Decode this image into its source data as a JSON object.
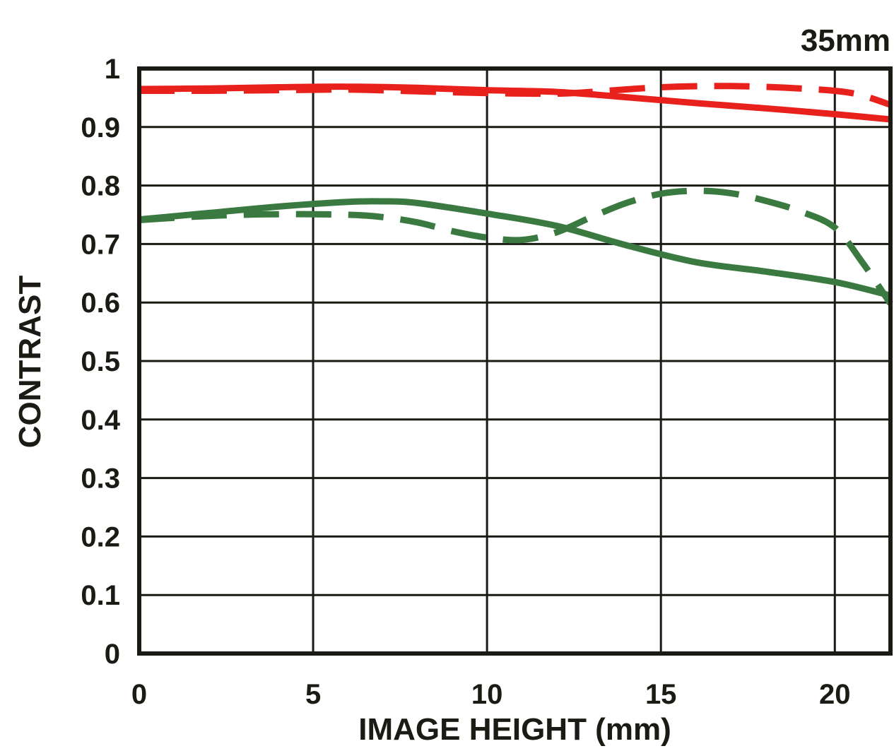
{
  "corner_label": "35mm",
  "axes": {
    "x_title": "IMAGE HEIGHT (mm)",
    "y_title": "CONTRAST",
    "x_tick_labels": [
      "0",
      "5",
      "10",
      "15",
      "20"
    ],
    "y_tick_labels": [
      "1",
      "0.9",
      "0.8",
      "0.7",
      "0.6",
      "0.5",
      "0.4",
      "0.3",
      "0.2",
      "0.1",
      "0"
    ]
  },
  "colors": {
    "axis": "#1c1a15",
    "red": "#e8211c",
    "green": "#3a7a40",
    "background": "#ffffff"
  },
  "chart_data": {
    "type": "line",
    "title": "35mm",
    "xlabel": "IMAGE HEIGHT (mm)",
    "ylabel": "CONTRAST",
    "xlim": [
      0,
      21.6
    ],
    "ylim": [
      0,
      1
    ],
    "x_tick_values": [
      0,
      5,
      10,
      15,
      20
    ],
    "y_tick_values": [
      1,
      0.9,
      0.8,
      0.7,
      0.6,
      0.5,
      0.4,
      0.3,
      0.2,
      0.1,
      0
    ],
    "grid": true,
    "legend": "none",
    "series": [
      {
        "name": "red-solid",
        "color": "#e8211c",
        "style": "solid",
        "points": [
          [
            0,
            0.965
          ],
          [
            2,
            0.966
          ],
          [
            4,
            0.968
          ],
          [
            6,
            0.969
          ],
          [
            8,
            0.967
          ],
          [
            10,
            0.963
          ],
          [
            12,
            0.96
          ],
          [
            14,
            0.951
          ],
          [
            16,
            0.941
          ],
          [
            18,
            0.932
          ],
          [
            20,
            0.922
          ],
          [
            21.6,
            0.913
          ]
        ]
      },
      {
        "name": "red-dashed",
        "color": "#e8211c",
        "style": "dashed",
        "points": [
          [
            0,
            0.962
          ],
          [
            2,
            0.962
          ],
          [
            4,
            0.963
          ],
          [
            6,
            0.964
          ],
          [
            8,
            0.961
          ],
          [
            10,
            0.958
          ],
          [
            12,
            0.957
          ],
          [
            13,
            0.96
          ],
          [
            15,
            0.968
          ],
          [
            17,
            0.97
          ],
          [
            19,
            0.966
          ],
          [
            20.5,
            0.958
          ],
          [
            21.6,
            0.938
          ]
        ]
      },
      {
        "name": "green-solid",
        "color": "#3a7a40",
        "style": "solid",
        "points": [
          [
            0,
            0.742
          ],
          [
            2,
            0.753
          ],
          [
            4,
            0.764
          ],
          [
            6,
            0.772
          ],
          [
            7,
            0.773
          ],
          [
            8,
            0.77
          ],
          [
            10,
            0.752
          ],
          [
            12,
            0.731
          ],
          [
            14,
            0.698
          ],
          [
            16,
            0.669
          ],
          [
            18,
            0.653
          ],
          [
            20,
            0.635
          ],
          [
            21.6,
            0.612
          ]
        ]
      },
      {
        "name": "green-dashed",
        "color": "#3a7a40",
        "style": "dashed",
        "points": [
          [
            0,
            0.741
          ],
          [
            2,
            0.748
          ],
          [
            4,
            0.751
          ],
          [
            6,
            0.75
          ],
          [
            7,
            0.746
          ],
          [
            8,
            0.737
          ],
          [
            9,
            0.722
          ],
          [
            10,
            0.711
          ],
          [
            11,
            0.707
          ],
          [
            12,
            0.72
          ],
          [
            13,
            0.746
          ],
          [
            14,
            0.77
          ],
          [
            15,
            0.786
          ],
          [
            16,
            0.791
          ],
          [
            17,
            0.787
          ],
          [
            18,
            0.774
          ],
          [
            19,
            0.756
          ],
          [
            20,
            0.728
          ],
          [
            20.8,
            0.668
          ],
          [
            21.6,
            0.598
          ]
        ]
      }
    ]
  }
}
